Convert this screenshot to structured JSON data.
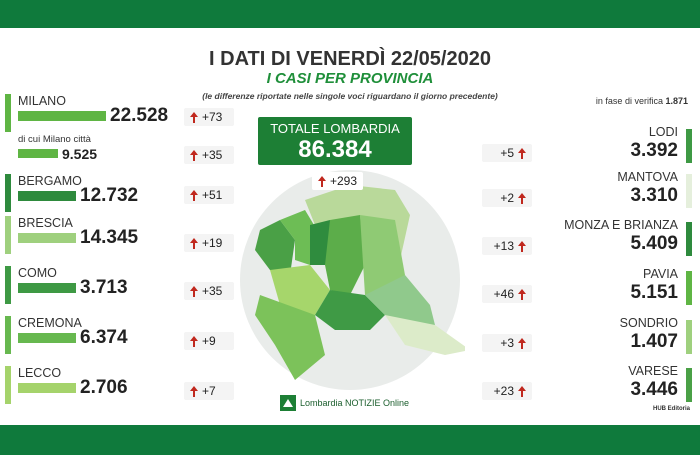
{
  "header": {
    "title": "I DATI DI VENERDÌ 22/05/2020",
    "subtitle": "I CASI PER PROVINCIA",
    "note": "(le differenze riportate nelle singole voci riguardano il giorno precedente)"
  },
  "verification": {
    "label": "in fase di verifica",
    "value": "1.871"
  },
  "total": {
    "label": "TOTALE LOMBARDIA",
    "value": "86.384",
    "delta": "+293"
  },
  "left": [
    {
      "name": "MILANO",
      "value": "22.528",
      "delta": "+73"
    },
    {
      "name": "di cui Milano città",
      "value": "9.525",
      "delta": "+35"
    },
    {
      "name": "BERGAMO",
      "value": "12.732",
      "delta": "+51"
    },
    {
      "name": "BRESCIA",
      "value": "14.345",
      "delta": "+19"
    },
    {
      "name": "COMO",
      "value": "3.713",
      "delta": "+35"
    },
    {
      "name": "CREMONA",
      "value": "6.374",
      "delta": "+9"
    },
    {
      "name": "LECCO",
      "value": "2.706",
      "delta": "+7"
    }
  ],
  "right": [
    {
      "name": "LODI",
      "value": "3.392",
      "delta": "+5"
    },
    {
      "name": "MANTOVA",
      "value": "3.310",
      "delta": "+2"
    },
    {
      "name": "MONZA E BRIANZA",
      "value": "5.409",
      "delta": "+13"
    },
    {
      "name": "PAVIA",
      "value": "5.151",
      "delta": "+46"
    },
    {
      "name": "SONDRIO",
      "value": "1.407",
      "delta": "+3"
    },
    {
      "name": "VARESE",
      "value": "3.446",
      "delta": "+23"
    }
  ],
  "footer": {
    "logo": "Lombardia NOTIZIE Online",
    "credit": "HUB Editoria"
  }
}
